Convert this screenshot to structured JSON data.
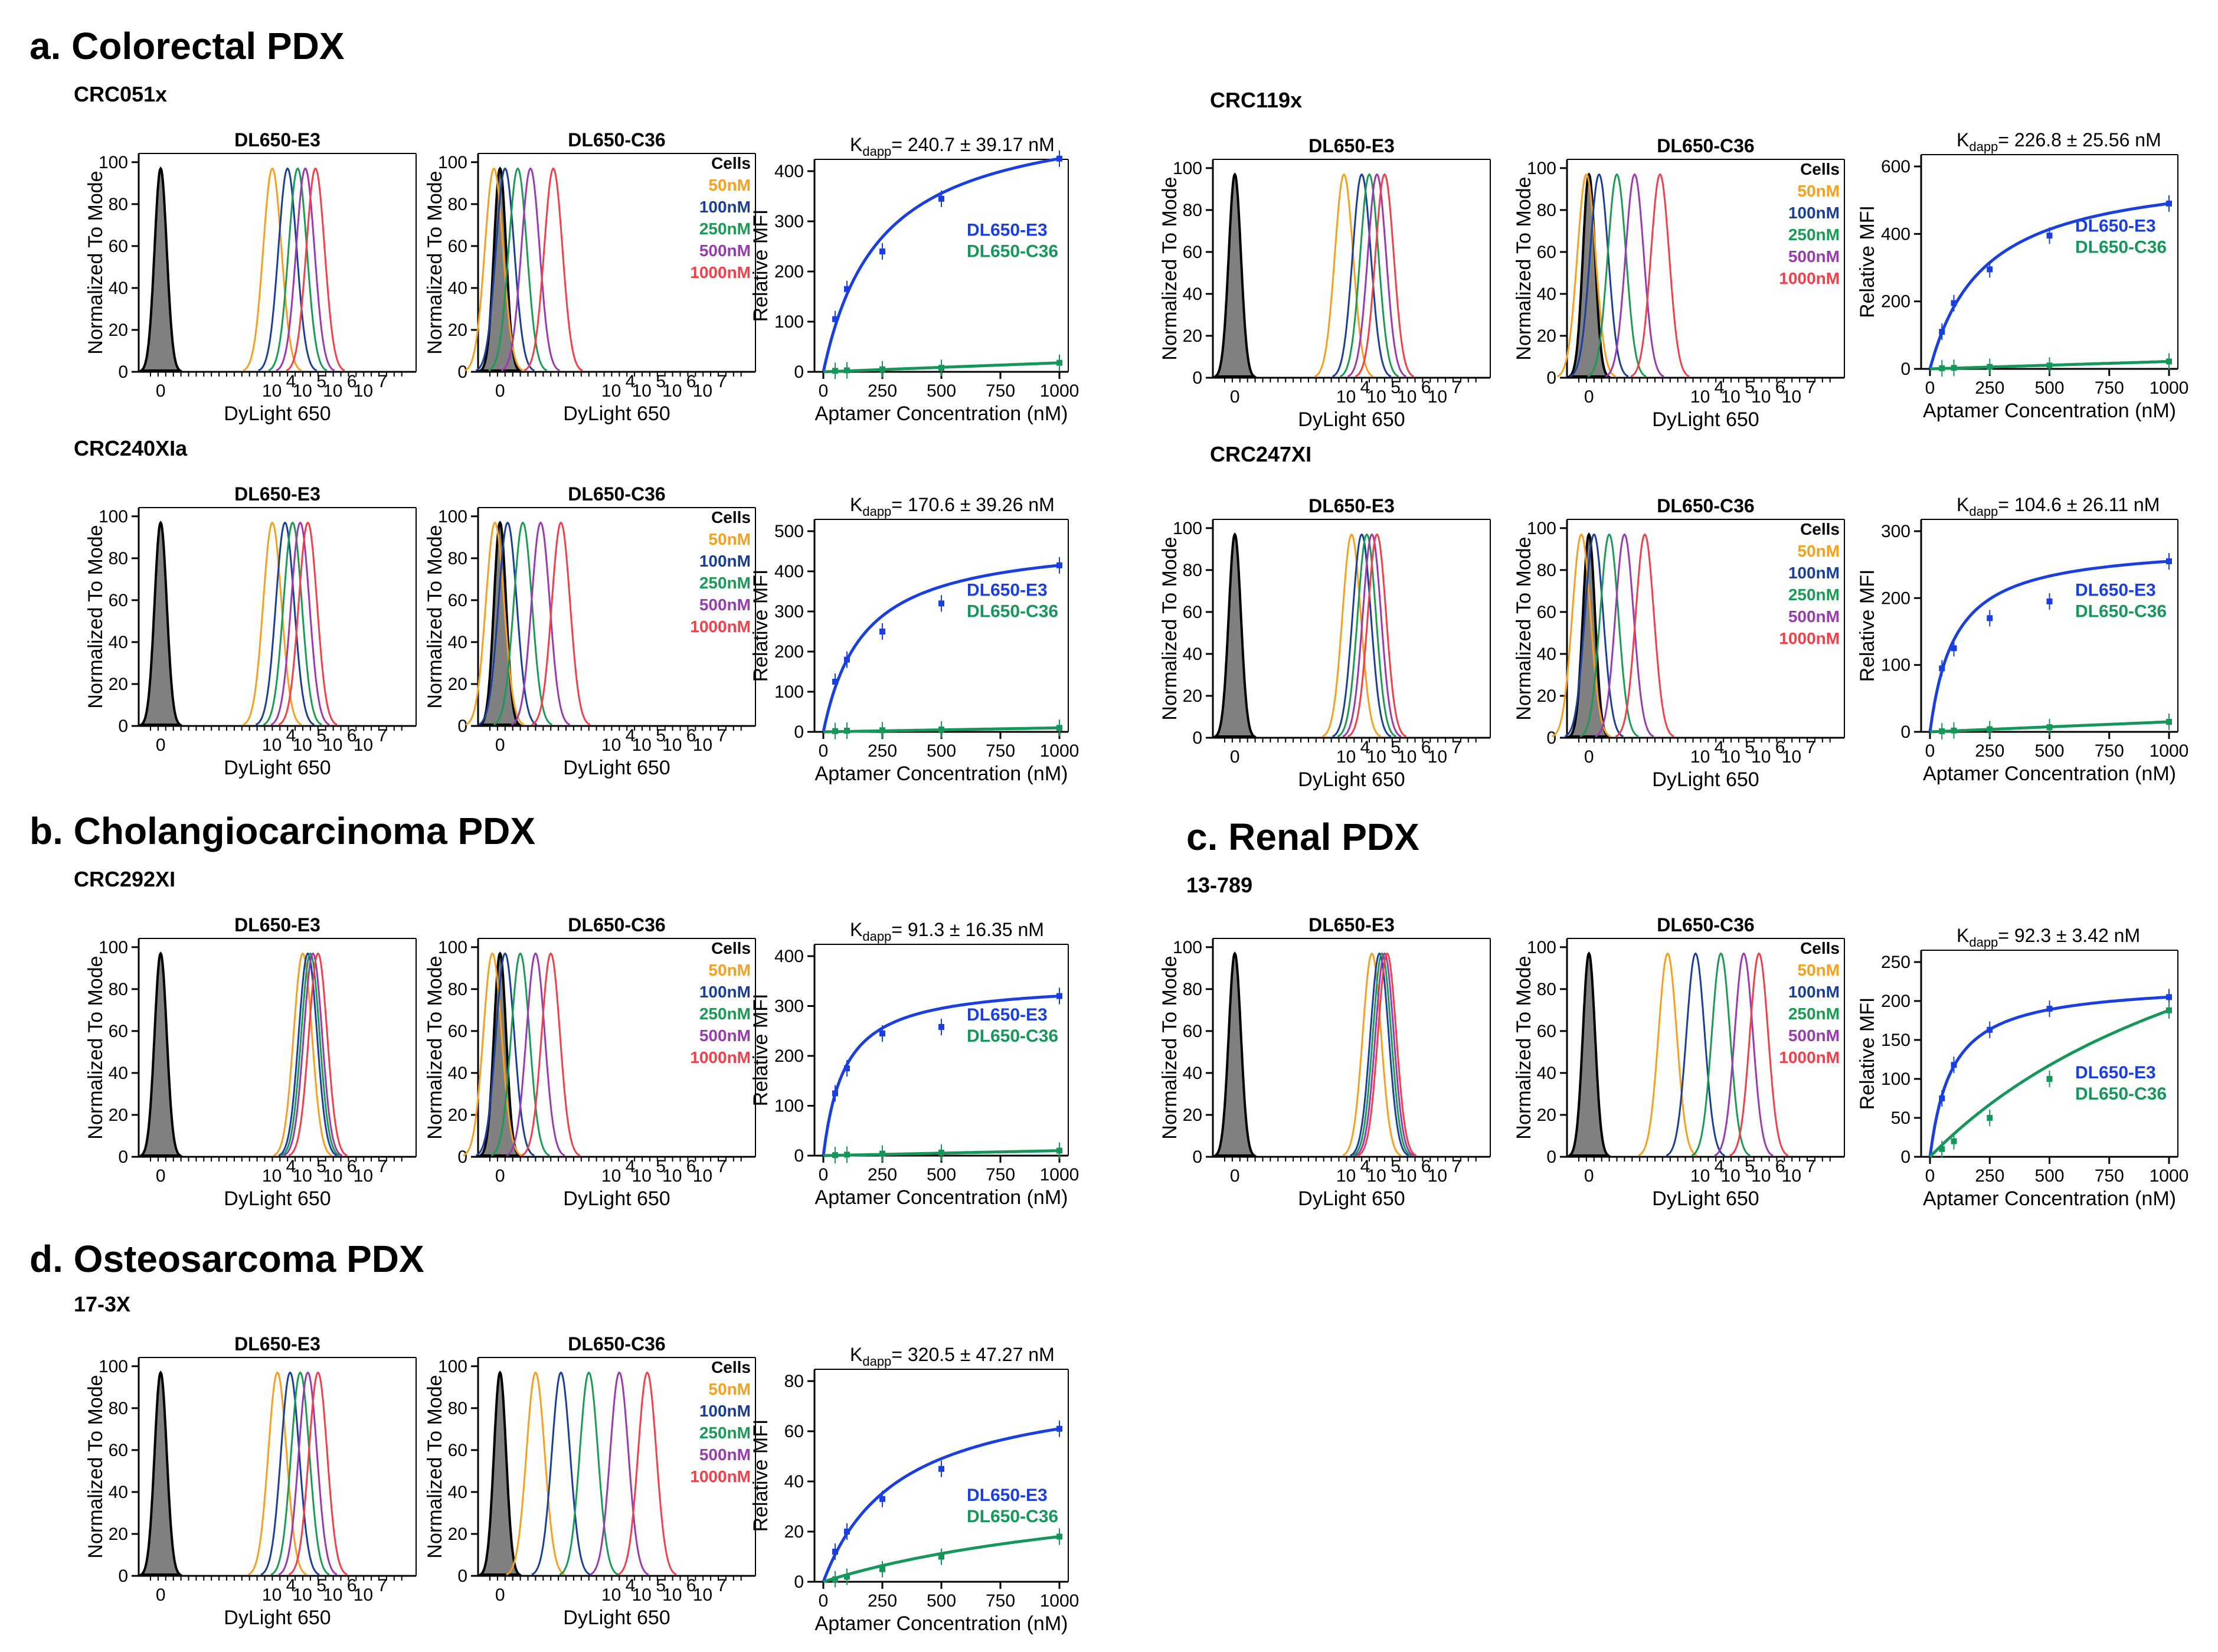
{
  "figure": {
    "colors": {
      "cells_fill": "#808080",
      "c50": "#f5a020",
      "c100": "#1a3f99",
      "c250": "#1a9a52",
      "c500": "#9a3ab0",
      "c1000": "#f0404c",
      "e3_curve": "#1a3fe0",
      "c36_curve": "#15975a"
    },
    "axis_text": {
      "hist_ylabel": "Normalized To Mode",
      "hist_xlabel": "DyLight 650",
      "binding_ylabel": "Relative MFI",
      "binding_xlabel": "Aptamer Concentration (nM)",
      "kd_prefix": "K",
      "kd_sub": "dapp",
      "hist_yticks": [
        "0",
        "20",
        "40",
        "60",
        "80",
        "100"
      ],
      "hist_xticks": [
        "0",
        "10",
        "4",
        "10",
        "5",
        "10",
        "6",
        "10",
        "7"
      ],
      "e3_title": "DL650-E3",
      "c36_title": "DL650-C36"
    },
    "legend": [
      "Cells",
      "50nM",
      "100nM",
      "250nM",
      "500nM",
      "1000nM"
    ],
    "curve_legend": [
      "DL650-E3",
      "DL650-C36"
    ],
    "sections": [
      {
        "id": "a",
        "title": "a. Colorectal PDX"
      },
      {
        "id": "b",
        "title": "b. Cholangiocarcinoma PDX"
      },
      {
        "id": "c",
        "title": "c. Renal PDX"
      },
      {
        "id": "d",
        "title": "d. Osteosarcoma PDX"
      }
    ],
    "panels": [
      {
        "sample": "CRC051x",
        "kd": "= 240.7 ± 39.17 nM",
        "ymax": 400,
        "ystep": 100,
        "e3": [
          [
            0,
            0
          ],
          [
            50,
            105
          ],
          [
            100,
            165
          ],
          [
            250,
            240
          ],
          [
            500,
            345
          ],
          [
            1000,
            425
          ]
        ],
        "c36": [
          [
            0,
            0
          ],
          [
            50,
            2
          ],
          [
            100,
            3
          ],
          [
            250,
            5
          ],
          [
            500,
            8
          ],
          [
            1000,
            18
          ]
        ],
        "e3_peaks": [
          2.4,
          2.7,
          2.9,
          3.05,
          3.25
        ],
        "c36_peaks": [
          0.08,
          0.3,
          0.55,
          0.8,
          1.25
        ]
      },
      {
        "sample": "CRC119x",
        "kd": "= 226.8 ± 25.56 nM",
        "ymax": 600,
        "ystep": 200,
        "e3": [
          [
            0,
            0
          ],
          [
            50,
            110
          ],
          [
            100,
            195
          ],
          [
            250,
            295
          ],
          [
            500,
            395
          ],
          [
            1000,
            490
          ]
        ],
        "c36": [
          [
            0,
            0
          ],
          [
            50,
            2
          ],
          [
            100,
            3
          ],
          [
            250,
            6
          ],
          [
            500,
            10
          ],
          [
            1000,
            22
          ]
        ],
        "e3_peaks": [
          2.35,
          2.7,
          2.85,
          3.0,
          3.15
        ],
        "c36_peaks": [
          0.15,
          0.4,
          0.75,
          1.1,
          1.6
        ]
      },
      {
        "sample": "CRC240XIa",
        "kd": "= 170.6 ± 39.26 nM",
        "ymax": 500,
        "ystep": 100,
        "e3": [
          [
            0,
            0
          ],
          [
            50,
            125
          ],
          [
            100,
            180
          ],
          [
            250,
            250
          ],
          [
            500,
            320
          ],
          [
            1000,
            415
          ]
        ],
        "c36": [
          [
            0,
            0
          ],
          [
            50,
            2
          ],
          [
            100,
            3
          ],
          [
            250,
            4
          ],
          [
            500,
            6
          ],
          [
            1000,
            10
          ]
        ],
        "e3_peaks": [
          2.4,
          2.65,
          2.8,
          2.95,
          3.1
        ],
        "c36_peaks": [
          0.1,
          0.35,
          0.65,
          1.0,
          1.4
        ]
      },
      {
        "sample": "CRC247XI",
        "kd": "= 104.6 ± 26.11 nM",
        "ymax": 300,
        "ystep": 100,
        "e3": [
          [
            0,
            0
          ],
          [
            50,
            95
          ],
          [
            100,
            125
          ],
          [
            250,
            170
          ],
          [
            500,
            195
          ],
          [
            1000,
            255
          ]
        ],
        "c36": [
          [
            0,
            0
          ],
          [
            50,
            1
          ],
          [
            100,
            2
          ],
          [
            250,
            4
          ],
          [
            500,
            7
          ],
          [
            1000,
            15
          ]
        ],
        "e3_peaks": [
          2.5,
          2.7,
          2.8,
          2.9,
          3.0
        ],
        "c36_peaks": [
          0.05,
          0.3,
          0.6,
          0.9,
          1.3
        ]
      },
      {
        "sample": "CRC292XI",
        "kd": "= 91.3 ± 16.35 nM",
        "ymax": 400,
        "ystep": 100,
        "e3": [
          [
            0,
            0
          ],
          [
            50,
            125
          ],
          [
            100,
            175
          ],
          [
            250,
            245
          ],
          [
            500,
            258
          ],
          [
            1000,
            320
          ]
        ],
        "c36": [
          [
            0,
            0
          ],
          [
            50,
            1
          ],
          [
            100,
            2
          ],
          [
            250,
            4
          ],
          [
            500,
            6
          ],
          [
            1000,
            10
          ]
        ],
        "e3_peaks": [
          3.0,
          3.1,
          3.15,
          3.2,
          3.3
        ],
        "c36_peaks": [
          0.05,
          0.3,
          0.6,
          0.9,
          1.2
        ]
      },
      {
        "sample": "13-789",
        "kd": "= 92.3 ± 3.42 nM",
        "ymax": 250,
        "ystep": 50,
        "e3": [
          [
            0,
            0
          ],
          [
            50,
            75
          ],
          [
            100,
            118
          ],
          [
            250,
            163
          ],
          [
            500,
            190
          ],
          [
            1000,
            205
          ]
        ],
        "c36": [
          [
            0,
            0
          ],
          [
            50,
            10
          ],
          [
            100,
            20
          ],
          [
            250,
            50
          ],
          [
            500,
            100
          ],
          [
            1000,
            188
          ]
        ],
        "e3_peaks": [
          2.9,
          3.05,
          3.1,
          3.15,
          3.2
        ],
        "c36_peaks": [
          1.75,
          2.3,
          2.8,
          3.25,
          3.55
        ]
      },
      {
        "sample": "17-3X",
        "kd": "= 320.5 ± 47.27 nM",
        "ymax": 80,
        "ystep": 20,
        "e3": [
          [
            0,
            0
          ],
          [
            50,
            12
          ],
          [
            100,
            20
          ],
          [
            250,
            33
          ],
          [
            500,
            45
          ],
          [
            1000,
            61
          ]
        ],
        "c36": [
          [
            0,
            0
          ],
          [
            50,
            1
          ],
          [
            100,
            2
          ],
          [
            250,
            5
          ],
          [
            500,
            10
          ],
          [
            1000,
            18
          ]
        ],
        "e3_peaks": [
          2.5,
          2.75,
          2.95,
          3.1,
          3.3
        ],
        "c36_peaks": [
          0.9,
          1.4,
          1.95,
          2.55,
          3.1
        ]
      }
    ]
  }
}
